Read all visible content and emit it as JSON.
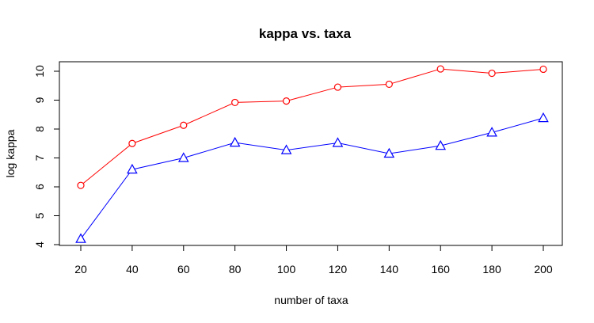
{
  "chart_data": {
    "type": "line",
    "title": "kappa vs. taxa",
    "xlabel": "number of taxa",
    "ylabel": "log kappa",
    "xlim": [
      20,
      200
    ],
    "ylim": [
      4,
      10
    ],
    "x_ticks": [
      20,
      40,
      60,
      80,
      100,
      120,
      140,
      160,
      180,
      200
    ],
    "y_ticks": [
      4,
      5,
      6,
      7,
      8,
      9,
      10
    ],
    "grid": false,
    "legend": "none",
    "x": [
      20,
      40,
      60,
      80,
      100,
      120,
      140,
      160,
      180,
      200
    ],
    "series": [
      {
        "color": "#ff0000",
        "marker": "circle",
        "values": [
          6.05,
          7.5,
          8.13,
          8.92,
          8.97,
          9.45,
          9.55,
          10.08,
          9.93,
          10.07
        ]
      },
      {
        "color": "#0000ff",
        "marker": "triangle",
        "values": [
          4.2,
          6.6,
          7.0,
          7.53,
          7.27,
          7.52,
          7.15,
          7.42,
          7.88,
          8.38
        ]
      }
    ]
  }
}
